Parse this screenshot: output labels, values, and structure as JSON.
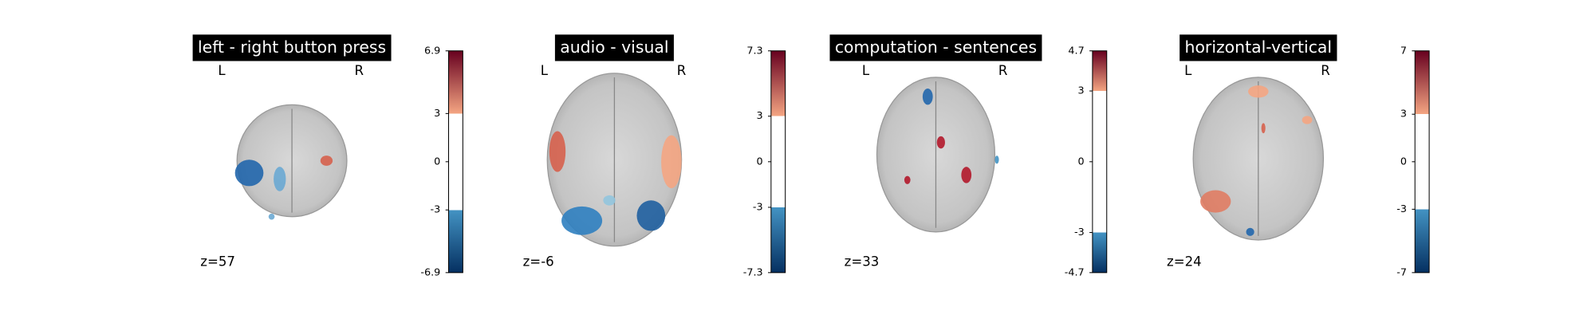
{
  "chart_data": [
    {
      "type": "brain-slice",
      "title": "left - right button press",
      "left_label": "L",
      "right_label": "R",
      "slice_label": "z=57",
      "colormap": "RdBu_r",
      "threshold": 3,
      "ylim": [
        -6.9,
        6.9
      ],
      "yticks": [
        -6.9,
        -3,
        0,
        3,
        6.9
      ]
    },
    {
      "type": "brain-slice",
      "title": "audio - visual",
      "left_label": "L",
      "right_label": "R",
      "slice_label": "z=-6",
      "colormap": "RdBu_r",
      "threshold": 3,
      "ylim": [
        -7.3,
        7.3
      ],
      "yticks": [
        -7.3,
        -3,
        0,
        3,
        7.3
      ]
    },
    {
      "type": "brain-slice",
      "title": "computation - sentences",
      "left_label": "L",
      "right_label": "R",
      "slice_label": "z=33",
      "colormap": "RdBu_r",
      "threshold": 3,
      "ylim": [
        -4.7,
        4.7
      ],
      "yticks": [
        -4.7,
        -3,
        0,
        3,
        4.7
      ]
    },
    {
      "type": "brain-slice",
      "title": "horizontal-vertical",
      "left_label": "L",
      "right_label": "R",
      "slice_label": "z=24",
      "colormap": "RdBu_r",
      "threshold": 3,
      "ylim": [
        -7,
        7
      ],
      "yticks": [
        -7,
        -3,
        0,
        3,
        7
      ]
    }
  ]
}
